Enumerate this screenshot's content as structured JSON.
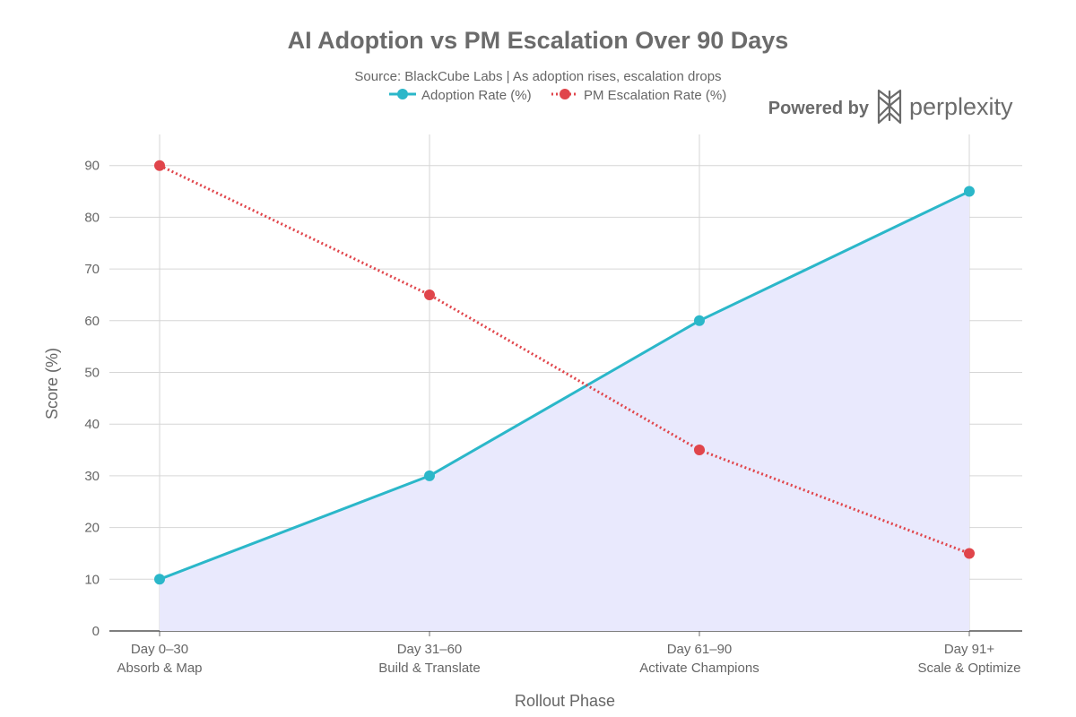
{
  "chart_data": {
    "type": "line",
    "title": "AI Adoption vs PM Escalation Over 90 Days",
    "subtitle": "Source: BlackCube Labs | As adoption rises, escalation drops",
    "xlabel": "Rollout Phase",
    "ylabel": "Score (%)",
    "ylim": [
      0,
      95
    ],
    "yticks": [
      0,
      10,
      20,
      30,
      40,
      50,
      60,
      70,
      80,
      90
    ],
    "categories": [
      [
        "Day 0–30",
        "Absorb & Map"
      ],
      [
        "Day 31–60",
        "Build & Translate"
      ],
      [
        "Day 61–90",
        "Activate Champions"
      ],
      [
        "Day 91+",
        "Scale & Optimize"
      ]
    ],
    "grid": true,
    "legend_position": "top-center",
    "series": [
      {
        "name": "Adoption Rate (%)",
        "values": [
          10,
          30,
          60,
          85
        ],
        "color": "#2bb7c9",
        "style": "solid",
        "fill": "#e9e9fd"
      },
      {
        "name": "PM Escalation Rate (%)",
        "values": [
          90,
          65,
          35,
          15
        ],
        "color": "#e0454b",
        "style": "dotted"
      }
    ]
  },
  "branding": {
    "powered_by": "Powered by",
    "brand_name": "perplexity",
    "logo_icon": "perplexity-logo-icon"
  }
}
